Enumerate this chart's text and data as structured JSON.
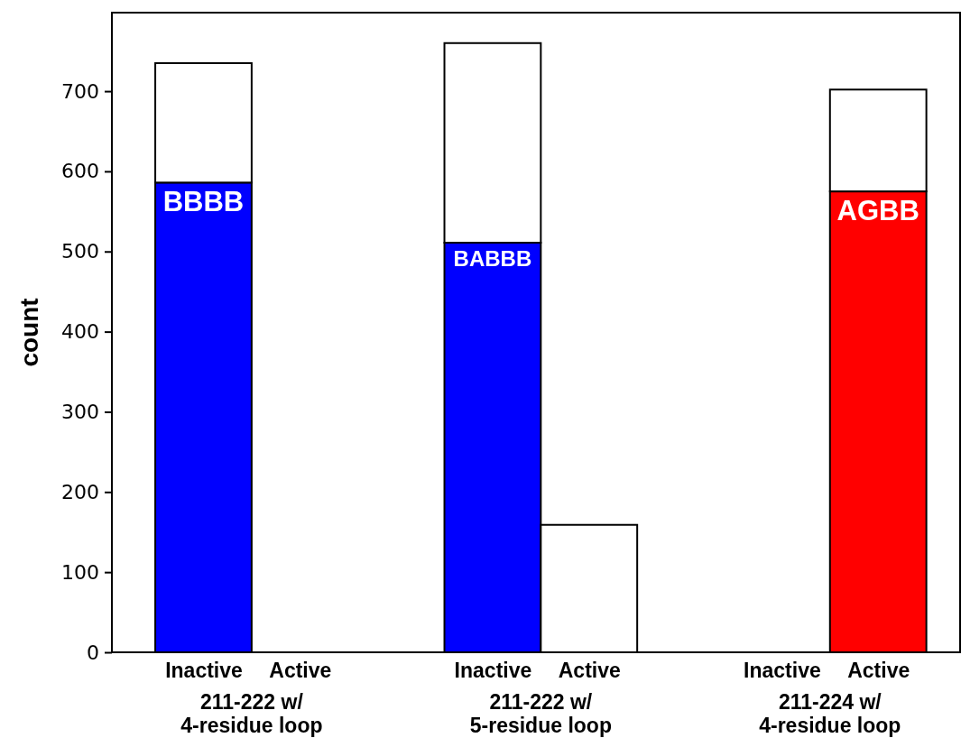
{
  "chart_data": {
    "type": "bar",
    "stacked": true,
    "ylabel": "count",
    "categories": [
      "Inactive",
      "Active",
      null,
      "Inactive",
      "Active",
      null,
      "Inactive",
      "Active"
    ],
    "annotations": [
      "211-222 w/\n4-residue loop",
      "211-222 w/\n5-residue loop",
      "211-224 w/\n4-residue loop"
    ],
    "series": [
      {
        "values": [
          586,
          0,
          null,
          511,
          0,
          null,
          0,
          575
        ],
        "colors": [
          "#0000ff",
          "#0000ff",
          null,
          "#0000ff",
          "#0000ff",
          null,
          "#ff0000",
          "#ff0000"
        ],
        "value_labels": [
          "BBBB",
          null,
          null,
          "BABBB",
          null,
          null,
          null,
          "AGBB"
        ]
      },
      {
        "values": [
          149,
          0,
          null,
          249,
          159,
          null,
          0,
          127
        ],
        "color": "#ffffff"
      }
    ],
    "ylim": [
      0,
      798
    ],
    "yticks": [
      0,
      100,
      200,
      300,
      400,
      500,
      600,
      700
    ],
    "grid": false
  }
}
